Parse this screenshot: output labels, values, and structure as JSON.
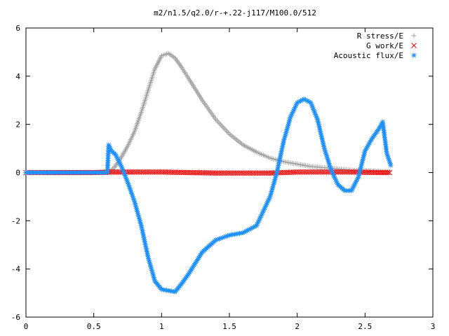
{
  "chart_data": {
    "type": "scatter",
    "title": "m2/n1.5/q2.0/r-+.22-j117/M100.0/512",
    "xlabel": "",
    "ylabel": "",
    "xlim": [
      0,
      3
    ],
    "ylim": [
      -6,
      6
    ],
    "xticks": [
      "0",
      "0.5",
      "1",
      "1.5",
      "2",
      "2.5",
      "3"
    ],
    "yticks": [
      "6",
      "4",
      "2",
      "0",
      "-2",
      "-4",
      "-6"
    ],
    "grid": false,
    "legend_position": "top-right",
    "series": [
      {
        "name": "R stress/E",
        "marker": "plus",
        "color": "#a0a0a0",
        "x": [
          0.0,
          0.3,
          0.6,
          0.62,
          0.65,
          0.7,
          0.75,
          0.8,
          0.85,
          0.9,
          0.95,
          1.0,
          1.05,
          1.1,
          1.15,
          1.2,
          1.3,
          1.4,
          1.5,
          1.6,
          1.7,
          1.8,
          1.9,
          2.0,
          2.1,
          2.2,
          2.3,
          2.4,
          2.5,
          2.6,
          2.68
        ],
        "y": [
          0,
          0,
          0,
          0.05,
          0.2,
          0.6,
          1.1,
          1.7,
          2.5,
          3.4,
          4.3,
          4.85,
          4.95,
          4.75,
          4.35,
          3.9,
          3.0,
          2.2,
          1.6,
          1.15,
          0.85,
          0.6,
          0.45,
          0.35,
          0.25,
          0.2,
          0.15,
          0.1,
          0.08,
          0.05,
          0.03
        ]
      },
      {
        "name": "G work/E",
        "marker": "cross",
        "color": "#ff0000",
        "x": [
          0.0,
          0.5,
          0.62,
          0.8,
          1.0,
          1.2,
          1.4,
          1.6,
          1.8,
          2.0,
          2.2,
          2.4,
          2.6,
          2.68
        ],
        "y": [
          0,
          0,
          0.02,
          0.02,
          0.02,
          0.0,
          -0.02,
          -0.02,
          -0.02,
          0.02,
          0.02,
          0.02,
          0.0,
          0.0
        ]
      },
      {
        "name": "Acoustic flux/E",
        "marker": "star",
        "color": "#1e90ff",
        "x": [
          0.0,
          0.3,
          0.6,
          0.61,
          0.63,
          0.66,
          0.7,
          0.75,
          0.8,
          0.85,
          0.9,
          0.95,
          1.0,
          1.05,
          1.1,
          1.15,
          1.2,
          1.3,
          1.4,
          1.5,
          1.6,
          1.7,
          1.8,
          1.85,
          1.9,
          1.95,
          2.0,
          2.05,
          2.1,
          2.15,
          2.2,
          2.25,
          2.3,
          2.35,
          2.4,
          2.45,
          2.5,
          2.55,
          2.6,
          2.63,
          2.66,
          2.69
        ],
        "y": [
          0,
          0,
          0,
          1.15,
          0.9,
          0.75,
          0.3,
          -0.4,
          -1.2,
          -2.2,
          -3.5,
          -4.5,
          -4.85,
          -4.9,
          -4.95,
          -4.6,
          -4.2,
          -3.3,
          -2.8,
          -2.6,
          -2.5,
          -2.2,
          -1.0,
          0.0,
          1.3,
          2.3,
          2.9,
          3.05,
          2.9,
          2.2,
          1.0,
          0.1,
          -0.5,
          -0.75,
          -0.75,
          -0.2,
          0.9,
          1.4,
          1.8,
          2.1,
          0.8,
          0.3
        ]
      }
    ]
  }
}
